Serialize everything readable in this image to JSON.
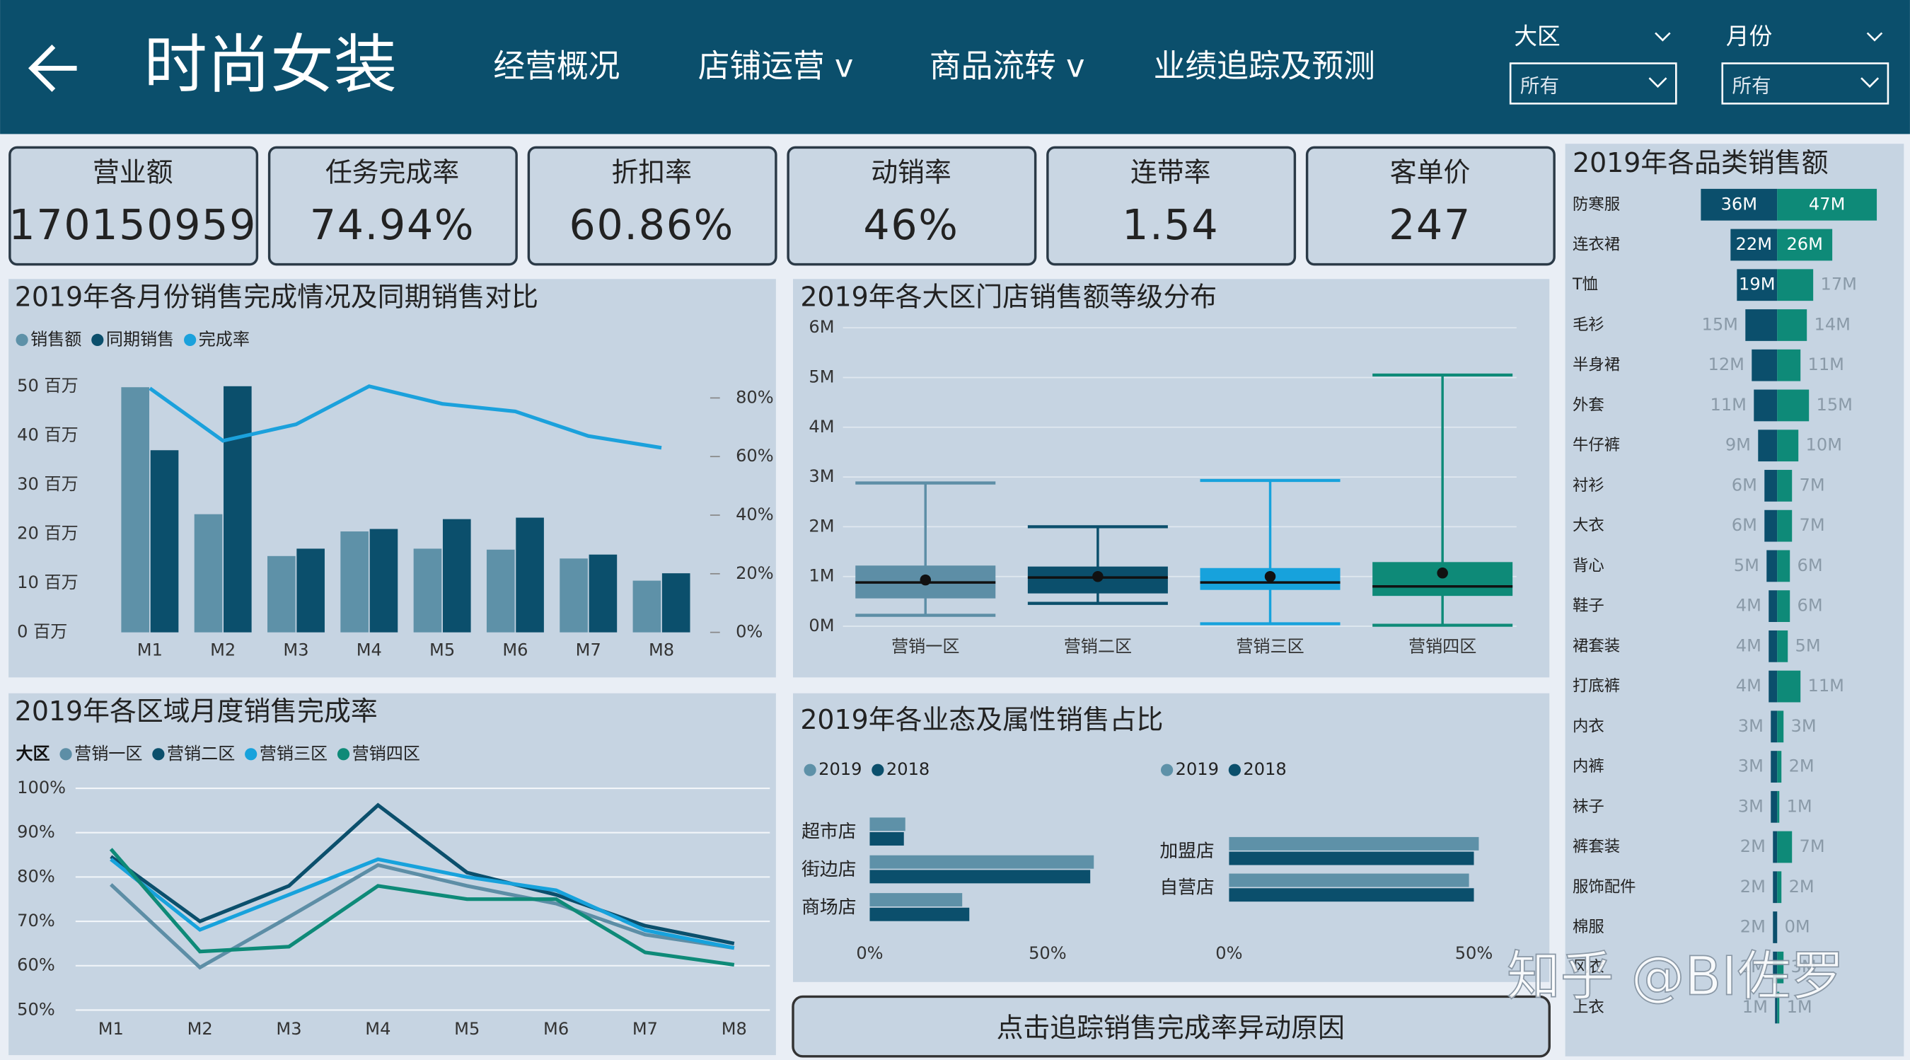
{
  "header": {
    "title": "时尚女装",
    "nav": [
      "经营概况",
      "店铺运营 v",
      "商品流转 v",
      "业绩追踪及预测"
    ],
    "filters": [
      {
        "label": "大区",
        "value": "所有"
      },
      {
        "label": "月份",
        "value": "所有"
      }
    ]
  },
  "kpis": [
    {
      "label": "营业额",
      "value": "170150959"
    },
    {
      "label": "任务完成率",
      "value": "74.94%"
    },
    {
      "label": "折扣率",
      "value": "60.86%"
    },
    {
      "label": "动销率",
      "value": "46%"
    },
    {
      "label": "连带率",
      "value": "1.54"
    },
    {
      "label": "客单价",
      "value": "247"
    }
  ],
  "chart_data": [
    {
      "type": "bar",
      "title": "2019年各月份销售完成情况及同期销售对比",
      "categories": [
        "M1",
        "M2",
        "M3",
        "M4",
        "M5",
        "M6",
        "M7",
        "M8"
      ],
      "series": [
        {
          "name": "销售额",
          "color": "#5e91a8",
          "values": [
            49.8,
            24,
            15.5,
            20.5,
            17,
            16.8,
            15,
            10.5
          ]
        },
        {
          "name": "同期销售",
          "color": "#0b4f6c",
          "values": [
            37,
            50,
            17,
            21,
            23,
            23.3,
            15.8,
            12
          ]
        },
        {
          "name": "完成率",
          "color": "#1ba1dc",
          "type": "line",
          "axis": "y2",
          "values": [
            83.3,
            65.4,
            71,
            84,
            78,
            75.4,
            67,
            63
          ]
        }
      ],
      "ylim": [
        0,
        50
      ],
      "yticks": [
        {
          "value": 0,
          "label": "0 百万"
        },
        {
          "value": 10,
          "label": "10 百万"
        },
        {
          "value": 20,
          "label": "20 百万"
        },
        {
          "value": 30,
          "label": "30 百万"
        },
        {
          "value": 40,
          "label": "40 百万"
        },
        {
          "value": 50,
          "label": "50 百万"
        }
      ],
      "y2lim": [
        0,
        84
      ],
      "y2ticks": [
        {
          "value": 0,
          "label": "0%"
        },
        {
          "value": 20,
          "label": "20%"
        },
        {
          "value": 40,
          "label": "40%"
        },
        {
          "value": 60,
          "label": "60%"
        },
        {
          "value": 80,
          "label": "80%"
        }
      ]
    },
    {
      "type": "box",
      "title": "2019年各大区门店销售额等级分布",
      "categories": [
        "营销一区",
        "营销二区",
        "营销三区",
        "营销四区"
      ],
      "boxes": [
        {
          "color": "#5d8ea6",
          "min": 0.22,
          "q1": 0.56,
          "median": 0.88,
          "q3": 1.22,
          "max": 2.88,
          "mean": 0.93
        },
        {
          "color": "#0b4f6c",
          "min": 0.46,
          "q1": 0.66,
          "median": 0.98,
          "q3": 1.2,
          "max": 2.0,
          "mean": 1.0
        },
        {
          "color": "#17a2dc",
          "min": 0.05,
          "q1": 0.73,
          "median": 0.88,
          "q3": 1.17,
          "max": 2.93,
          "mean": 1.0
        },
        {
          "color": "#0e8a78",
          "min": 0.02,
          "q1": 0.61,
          "median": 0.8,
          "q3": 1.29,
          "max": 5.05,
          "mean": 1.07
        }
      ],
      "ylim": [
        0,
        6
      ],
      "yticks": [
        {
          "value": 0,
          "label": "0M"
        },
        {
          "value": 1,
          "label": "1M"
        },
        {
          "value": 2,
          "label": "2M"
        },
        {
          "value": 3,
          "label": "3M"
        },
        {
          "value": 4,
          "label": "4M"
        },
        {
          "value": 5,
          "label": "5M"
        },
        {
          "value": 6,
          "label": "6M"
        }
      ],
      "grid": true
    },
    {
      "type": "line",
      "title": "2019年各区域月度销售完成率",
      "legend_title": "大区",
      "categories": [
        "M1",
        "M2",
        "M3",
        "M4",
        "M5",
        "M6",
        "M7",
        "M8"
      ],
      "series": [
        {
          "name": "营销一区",
          "color": "#5d8ea6",
          "values": [
            78.3,
            59.6,
            71,
            82.7,
            78,
            74,
            67,
            64
          ]
        },
        {
          "name": "营销二区",
          "color": "#0b4f6c",
          "values": [
            84.6,
            70,
            78,
            96.2,
            81,
            76,
            69,
            65
          ]
        },
        {
          "name": "营销三区",
          "color": "#17a2dc",
          "values": [
            84,
            68.1,
            76,
            84,
            80,
            77,
            68,
            64
          ]
        },
        {
          "name": "营销四区",
          "color": "#0e8a78",
          "values": [
            86.3,
            63.2,
            64.3,
            78,
            75,
            75,
            63,
            60.2
          ]
        }
      ],
      "ylim": [
        50,
        100
      ],
      "yticks": [
        {
          "value": 50,
          "label": "50%"
        },
        {
          "value": 60,
          "label": "60%"
        },
        {
          "value": 70,
          "label": "70%"
        },
        {
          "value": 80,
          "label": "80%"
        },
        {
          "value": 90,
          "label": "90%"
        },
        {
          "value": 100,
          "label": "100%"
        }
      ],
      "grid": true
    },
    {
      "type": "hbar",
      "title": "2019年各业态及属性销售占比",
      "categories": [
        "超市店",
        "街边店",
        "商场店"
      ],
      "series": [
        {
          "name": "2019",
          "color": "#5e91a8",
          "values": [
            10,
            63,
            26
          ]
        },
        {
          "name": "2018",
          "color": "#0b4f6c",
          "values": [
            9.6,
            62,
            28
          ]
        }
      ],
      "xlim": [
        0,
        65
      ],
      "xticks": [
        {
          "value": 0,
          "label": "0%"
        },
        {
          "value": 50,
          "label": "50%"
        }
      ]
    },
    {
      "type": "hbar",
      "categories": [
        "加盟店",
        "自营店"
      ],
      "series": [
        {
          "name": "2019",
          "color": "#5e91a8",
          "values": [
            51,
            49
          ]
        },
        {
          "name": "2018",
          "color": "#0b4f6c",
          "values": [
            50,
            50
          ]
        }
      ],
      "xlim": [
        0,
        55
      ],
      "xticks": [
        {
          "value": 0,
          "label": "0%"
        },
        {
          "value": 50,
          "label": "50%"
        }
      ]
    },
    {
      "type": "diverging",
      "title": "2019年各品类销售额",
      "categories": [
        "防寒服",
        "连衣裙",
        "T恤",
        "毛衫",
        "半身裙",
        "外套",
        "牛仔裤",
        "衬衫",
        "大衣",
        "背心",
        "鞋子",
        "裙套装",
        "打底裤",
        "内衣",
        "内裤",
        "袜子",
        "裤套装",
        "服饰配件",
        "棉服",
        "风衣",
        "上衣"
      ],
      "series": [
        {
          "color": "#0b4f6c",
          "values": [
            36,
            22,
            19,
            15,
            12,
            11,
            9,
            6,
            6,
            5,
            4,
            4,
            4,
            3,
            3,
            3,
            2,
            2,
            2,
            2,
            1
          ],
          "value_labels": [
            "36M",
            "22M",
            "19M",
            "15M",
            "12M",
            "11M",
            "9M",
            "6M",
            "6M",
            "5M",
            "4M",
            "4M",
            "4M",
            "3M",
            "3M",
            "3M",
            "2M",
            "2M",
            "2M",
            "2M",
            "1M"
          ]
        },
        {
          "color": "#0e8a78",
          "values": [
            47,
            26,
            17,
            14,
            11,
            15,
            10,
            7,
            7,
            6,
            6,
            5,
            11,
            3,
            2,
            1,
            7,
            2,
            0,
            3,
            1
          ],
          "value_labels": [
            "47M",
            "26M",
            "17M",
            "14M",
            "11M",
            "15M",
            "10M",
            "7M",
            "7M",
            "6M",
            "6M",
            "5M",
            "11M",
            "3M",
            "2M",
            "1M",
            "7M",
            "2M",
            "0M",
            "3M",
            "1M"
          ]
        }
      ]
    }
  ],
  "button": "点击追踪销售完成率异动原因",
  "watermark": "知乎 @BI佐罗"
}
